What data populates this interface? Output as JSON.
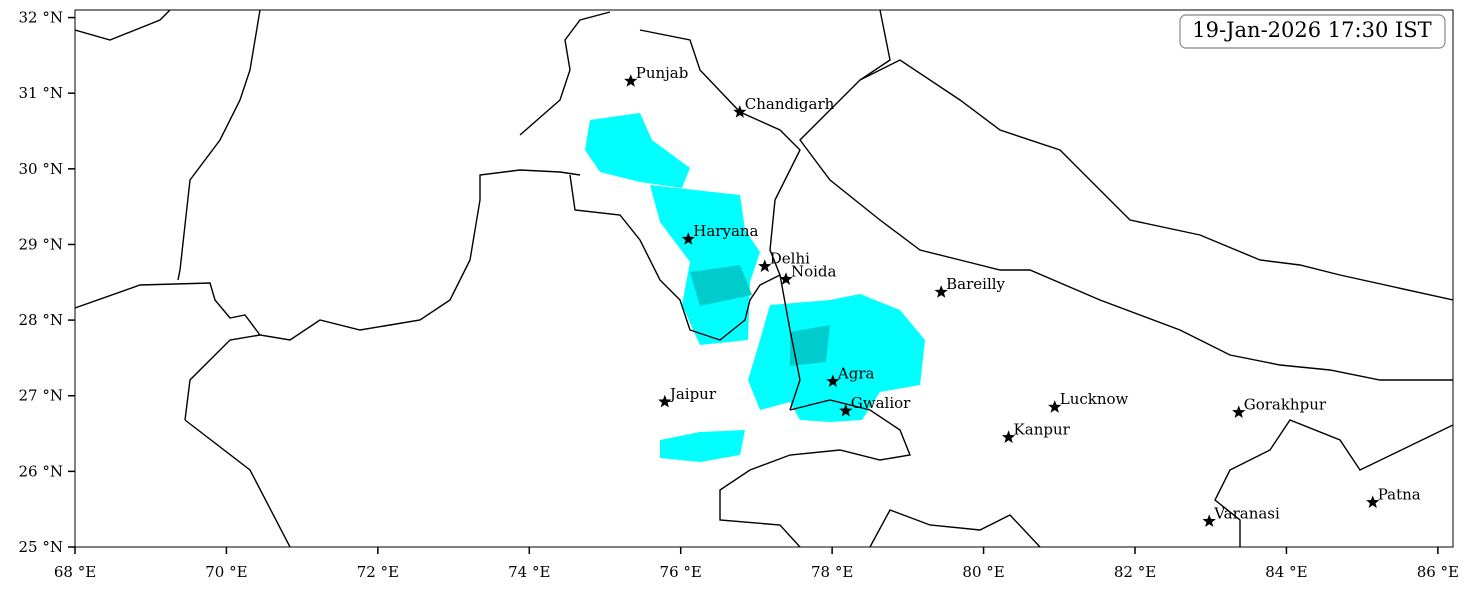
{
  "map": {
    "timestamp": "19-Jan-2026 17:30 IST",
    "xlim": [
      68,
      86.2
    ],
    "ylim": [
      25,
      32.1
    ],
    "xticks": [
      {
        "value": 68,
        "label": "68 °E"
      },
      {
        "value": 70,
        "label": "70 °E"
      },
      {
        "value": 72,
        "label": "72 °E"
      },
      {
        "value": 74,
        "label": "74 °E"
      },
      {
        "value": 76,
        "label": "76 °E"
      },
      {
        "value": 78,
        "label": "78 °E"
      },
      {
        "value": 80,
        "label": "80 °E"
      },
      {
        "value": 82,
        "label": "82 °E"
      },
      {
        "value": 84,
        "label": "84 °E"
      },
      {
        "value": 86,
        "label": "86 °E"
      }
    ],
    "yticks": [
      {
        "value": 25,
        "label": "25 °N"
      },
      {
        "value": 26,
        "label": "26 °N"
      },
      {
        "value": 27,
        "label": "27 °N"
      },
      {
        "value": 28,
        "label": "28 °N"
      },
      {
        "value": 29,
        "label": "29 °N"
      },
      {
        "value": 30,
        "label": "30 °N"
      },
      {
        "value": 31,
        "label": "31 °N"
      },
      {
        "value": 32,
        "label": "32 °N"
      }
    ],
    "cities": [
      {
        "name": "Punjab",
        "lon": 75.34,
        "lat": 31.16
      },
      {
        "name": "Chandigarh",
        "lon": 76.78,
        "lat": 30.75
      },
      {
        "name": "Haryana",
        "lon": 76.1,
        "lat": 29.07
      },
      {
        "name": "Delhi",
        "lon": 77.11,
        "lat": 28.71
      },
      {
        "name": "Noida",
        "lon": 77.39,
        "lat": 28.54
      },
      {
        "name": "Bareilly",
        "lon": 79.44,
        "lat": 28.37
      },
      {
        "name": "Agra",
        "lon": 78.01,
        "lat": 27.19
      },
      {
        "name": "Jaipur",
        "lon": 75.79,
        "lat": 26.92
      },
      {
        "name": "Gwalior",
        "lon": 78.18,
        "lat": 26.8
      },
      {
        "name": "Lucknow",
        "lon": 80.94,
        "lat": 26.85
      },
      {
        "name": "Kanpur",
        "lon": 80.33,
        "lat": 26.45
      },
      {
        "name": "Gorakhpur",
        "lon": 83.37,
        "lat": 26.78
      },
      {
        "name": "Varanasi",
        "lon": 82.98,
        "lat": 25.34
      },
      {
        "name": "Patna",
        "lon": 85.14,
        "lat": 25.59
      }
    ]
  }
}
